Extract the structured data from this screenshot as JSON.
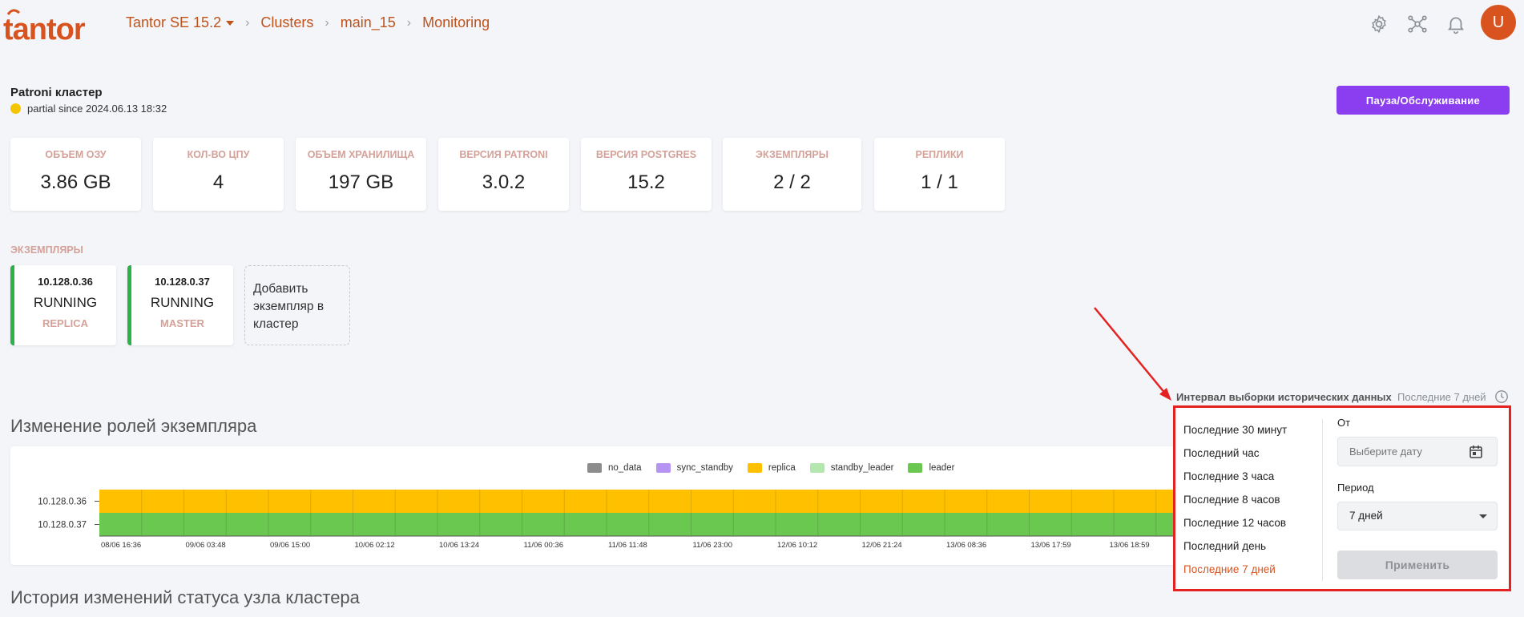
{
  "header": {
    "logo_text": "tantor",
    "breadcrumb": [
      "Tantor SE 15.2",
      "Clusters",
      "main_15",
      "Monitoring"
    ]
  },
  "avatar_letter": "U",
  "cluster": {
    "title": "Patroni кластер",
    "status_text": "partial since 2024.06.13 18:32",
    "status_color": "#f5c400",
    "pause_button": "Пауза/Обслуживание"
  },
  "stats": [
    {
      "label": "Объем ОЗУ",
      "value": "3.86 GB"
    },
    {
      "label": "Кол-во ЦПУ",
      "value": "4"
    },
    {
      "label": "Объем хранилища",
      "value": "197 GB"
    },
    {
      "label": "Версия Patroni",
      "value": "3.0.2"
    },
    {
      "label": "Версия Postgres",
      "value": "15.2"
    },
    {
      "label": "Экземпляры",
      "value": "2 / 2"
    },
    {
      "label": "Реплики",
      "value": "1 / 1"
    }
  ],
  "instances_title": "Экземпляры",
  "instances": [
    {
      "ip": "10.128.0.36",
      "state": "RUNNING",
      "role": "REPLICA"
    },
    {
      "ip": "10.128.0.37",
      "state": "RUNNING",
      "role": "MASTER"
    }
  ],
  "add_instance": "Добавить экземпляр в кластер",
  "role_chart_title": "Изменение ролей экземпляра",
  "history_title": "История изменений статуса узла кластера",
  "chart_data": {
    "type": "bar",
    "orientation": "horizontal-timeline",
    "legend": [
      {
        "name": "no_data",
        "color": "#8c8c8c"
      },
      {
        "name": "sync_standby",
        "color": "#b794f4"
      },
      {
        "name": "replica",
        "color": "#ffc000"
      },
      {
        "name": "standby_leader",
        "color": "#b6e6b0"
      },
      {
        "name": "leader",
        "color": "#6ac74f"
      }
    ],
    "categories": [
      "10.128.0.36",
      "10.128.0.37"
    ],
    "series": [
      {
        "name": "replica",
        "instance": "10.128.0.36"
      },
      {
        "name": "leader",
        "instance": "10.128.0.37"
      }
    ],
    "x_ticks": [
      "08/06 16:36",
      "09/06 03:48",
      "09/06 15:00",
      "10/06 02:12",
      "10/06 13:24",
      "11/06 00:36",
      "11/06 11:48",
      "11/06 23:00",
      "12/06 10:12",
      "12/06 21:24",
      "13/06 08:36",
      "13/06 17:59",
      "13/06 18:59"
    ],
    "legend_position": "top-center",
    "grid": true
  },
  "interval": {
    "label": "Интервал выборки исторических данных",
    "current": "Последние 7 дней",
    "options": [
      "Последние 30 минут",
      "Последний час",
      "Последние 3 часа",
      "Последние 8 часов",
      "Последние 12 часов",
      "Последний день",
      "Последние 7 дней"
    ],
    "active_index": 6,
    "from_label": "От",
    "date_placeholder": "Выберите дату",
    "period_label": "Период",
    "period_value": "7 дней",
    "apply_button": "Применить"
  },
  "colors": {
    "brand": "#d9531e",
    "accent_purple": "#8b3df0",
    "annotation_red": "#e52222",
    "running_green": "#2db24a"
  }
}
